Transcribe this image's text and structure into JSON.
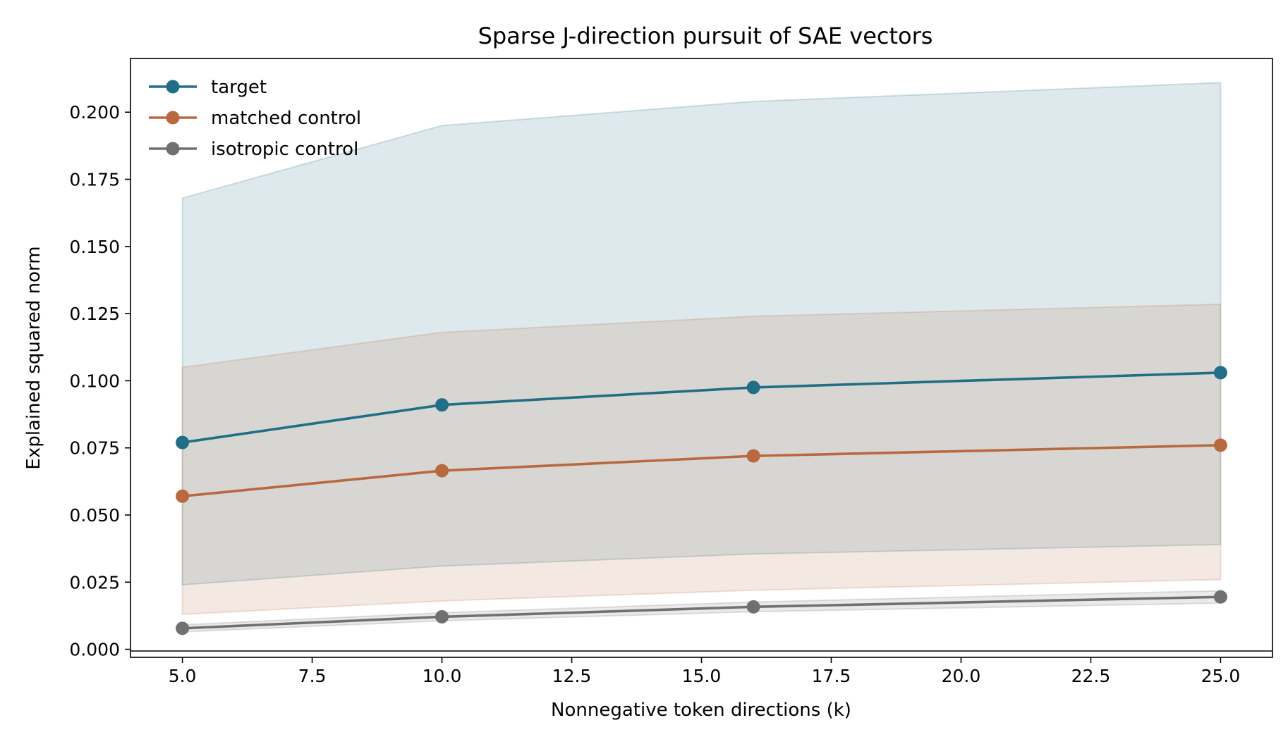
{
  "chart_data": {
    "type": "line",
    "title": "Sparse J-direction pursuit of SAE vectors",
    "xlabel": "Nonnegative token directions (k)",
    "ylabel": "Explained squared norm",
    "xlim": [
      4.0,
      26.0
    ],
    "ylim": [
      -0.003,
      0.22
    ],
    "x_ticks": [
      "5.0",
      "7.5",
      "10.0",
      "12.5",
      "15.0",
      "17.5",
      "20.0",
      "22.5",
      "25.0"
    ],
    "x_tick_values": [
      5.0,
      7.5,
      10.0,
      12.5,
      15.0,
      17.5,
      20.0,
      22.5,
      25.0
    ],
    "y_ticks": [
      "0.000",
      "0.025",
      "0.050",
      "0.075",
      "0.100",
      "0.125",
      "0.150",
      "0.175",
      "0.200"
    ],
    "y_tick_values": [
      0.0,
      0.025,
      0.05,
      0.075,
      0.1,
      0.125,
      0.15,
      0.175,
      0.2
    ],
    "grid": false,
    "legend_position": "top-left",
    "x": [
      5,
      10,
      16,
      25
    ],
    "series": [
      {
        "name": "target",
        "color": "#216e87",
        "values": [
          0.077,
          0.091,
          0.0975,
          0.103
        ],
        "band_lower": [
          0.024,
          0.031,
          0.0355,
          0.039
        ],
        "band_upper": [
          0.168,
          0.195,
          0.204,
          0.211
        ]
      },
      {
        "name": "matched control",
        "color": "#b8693f",
        "values": [
          0.057,
          0.0665,
          0.072,
          0.076
        ],
        "band_lower": [
          0.013,
          0.018,
          0.022,
          0.026
        ],
        "band_upper": [
          0.105,
          0.118,
          0.124,
          0.1285
        ]
      },
      {
        "name": "isotropic control",
        "color": "#707070",
        "values": [
          0.0078,
          0.0121,
          0.0158,
          0.0195
        ],
        "band_lower": [
          0.0065,
          0.0106,
          0.014,
          0.0172
        ],
        "band_upper": [
          0.0091,
          0.0136,
          0.0176,
          0.0218
        ]
      }
    ]
  }
}
